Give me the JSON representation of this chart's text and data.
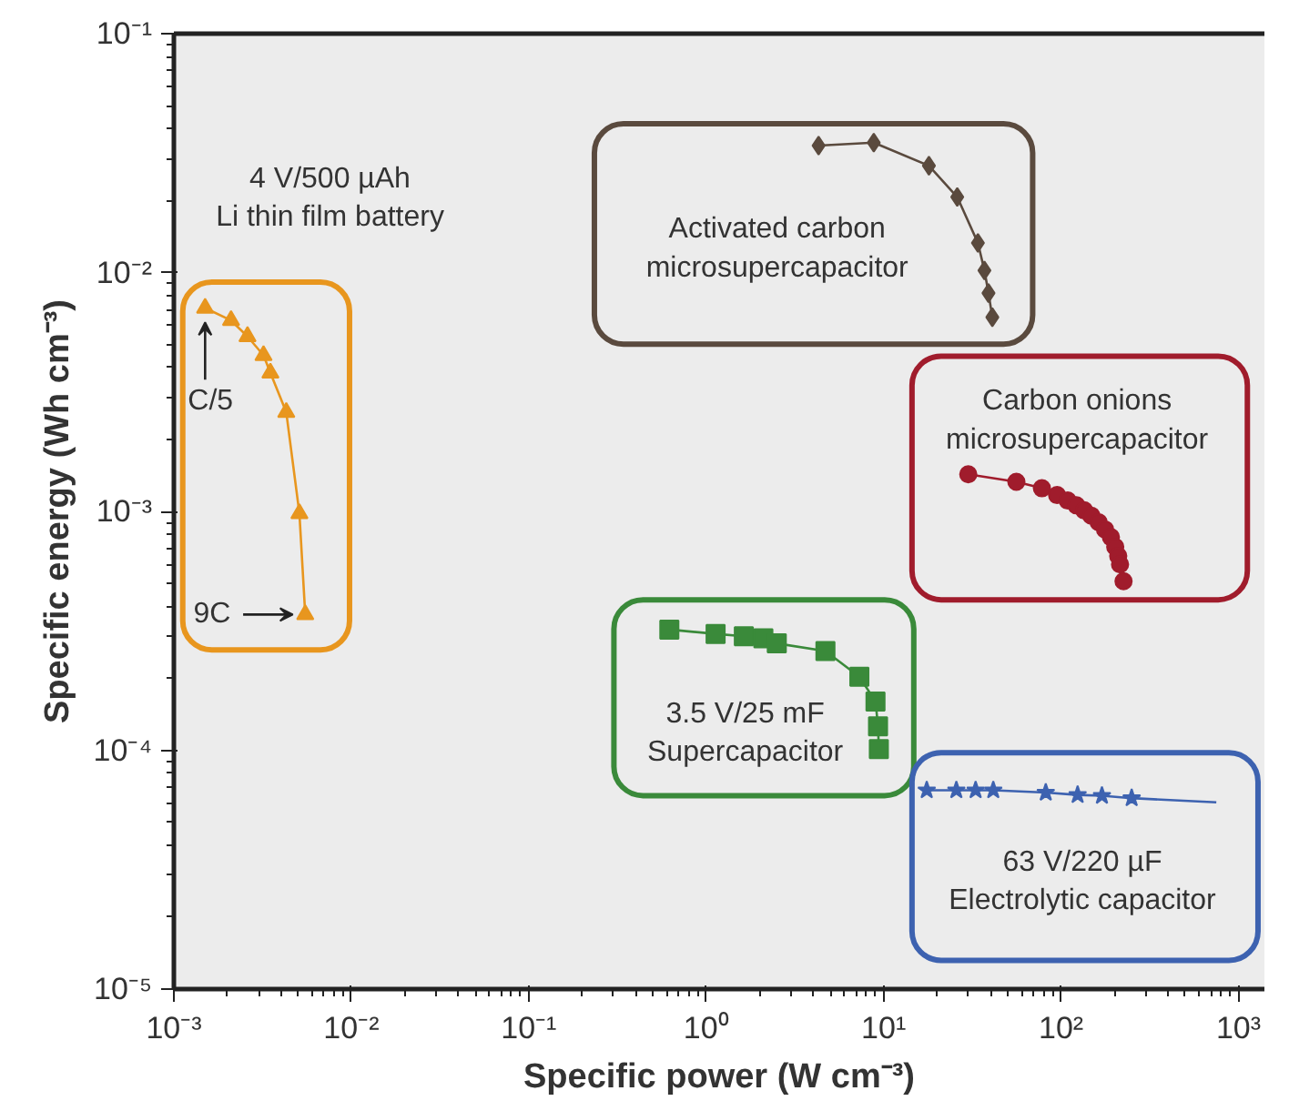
{
  "chart_data": {
    "type": "line",
    "xlabel": "Specific power (W cm⁻³)",
    "ylabel": "Specific energy (Wh cm⁻³)",
    "log": "xy",
    "xlim": [
      0.001,
      1400
    ],
    "ylim": [
      1e-05,
      0.1
    ],
    "xticks": [
      {
        "value": 0.001,
        "label": "10⁻³"
      },
      {
        "value": 0.01,
        "label": "10⁻²"
      },
      {
        "value": 0.1,
        "label": "10⁻¹"
      },
      {
        "value": 1,
        "label": "10⁰"
      },
      {
        "value": 10,
        "label": "10¹"
      },
      {
        "value": 100,
        "label": "10²"
      },
      {
        "value": 1000,
        "label": "10³"
      }
    ],
    "yticks": [
      {
        "value": 1e-05,
        "label": "10⁻⁵"
      },
      {
        "value": 0.0001,
        "label": "10⁻⁴"
      },
      {
        "value": 0.001,
        "label": "10⁻³"
      },
      {
        "value": 0.01,
        "label": "10⁻²"
      },
      {
        "value": 0.1,
        "label": "10⁻¹"
      }
    ],
    "series": [
      {
        "name": "4 V/500 µAh\nLi thin film battery",
        "marker": "triangle",
        "color": "#e8961e",
        "x": [
          0.0015,
          0.0021,
          0.0026,
          0.0032,
          0.0035,
          0.0043,
          0.0051,
          0.0055
        ],
        "values": [
          0.0071,
          0.0063,
          0.0054,
          0.0045,
          0.0038,
          0.0026,
          0.00098,
          0.00037
        ]
      },
      {
        "name": "Activated carbon\nmicrosupercapacitor",
        "marker": "diamond",
        "color": "#5a4a3e",
        "x": [
          4.3,
          8.8,
          18,
          26,
          34,
          37,
          39,
          41
        ],
        "values": [
          0.034,
          0.035,
          0.028,
          0.0207,
          0.0133,
          0.0102,
          0.0082,
          0.0065
        ]
      },
      {
        "name": "Carbon onions\nmicrosupercapacitor",
        "marker": "circle",
        "color": "#a01c2c",
        "x": [
          30,
          56,
          78,
          95,
          109,
          122,
          135,
          148,
          163,
          177,
          191,
          202,
          210,
          215,
          225
        ],
        "values": [
          0.00143,
          0.00133,
          0.00125,
          0.00117,
          0.00111,
          0.00106,
          0.00101,
          0.00096,
          0.0009,
          0.00084,
          0.00078,
          0.00071,
          0.00065,
          0.0006,
          0.00051
        ]
      },
      {
        "name": "3.5 V/25 mF\nSupercapacitor",
        "marker": "square",
        "color": "#3a8a3a",
        "x": [
          0.62,
          1.13,
          1.63,
          2.1,
          2.5,
          4.7,
          7.3,
          9.0,
          9.3,
          9.4
        ],
        "values": [
          0.00032,
          0.000307,
          0.0003,
          0.000294,
          0.00028,
          0.00026,
          0.000203,
          0.00016,
          0.000126,
          0.000101
        ]
      },
      {
        "name": "63 V/220 µF\nElectrolytic capacitor",
        "marker": "star",
        "color": "#3d62b0",
        "x": [
          17.5,
          25.7,
          33,
          41.5,
          82,
          124,
          170,
          250
        ],
        "values": [
          6.8e-05,
          6.8e-05,
          6.8e-05,
          6.8e-05,
          6.65e-05,
          6.5e-05,
          6.45e-05,
          6.3e-05
        ]
      },
      {
        "marker": "none",
        "color": "#3d62b0",
        "x": [
          250,
          750
        ],
        "values": [
          6.3e-05,
          6.05e-05
        ]
      }
    ],
    "annotations": [
      {
        "text": "C/5",
        "x": 0.0015,
        "y": 0.0071
      },
      {
        "text": "9C",
        "x": 0.0055,
        "y": 0.00037
      }
    ]
  }
}
